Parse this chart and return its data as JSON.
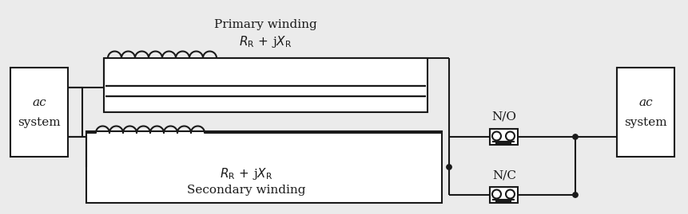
{
  "bg_color": "#ebebeb",
  "line_color": "#1a1a1a",
  "lw": 1.5,
  "fig_w": 8.62,
  "fig_h": 2.69,
  "primary_label": "Primary winding",
  "secondary_label": "Secondary winding",
  "no_label": "N/O",
  "nc_label": "N/C",
  "ac_label_top": "ac",
  "ac_label_bot": "system",
  "n_loops_primary": 8,
  "n_loops_secondary": 8,
  "loop_r": 0.085
}
